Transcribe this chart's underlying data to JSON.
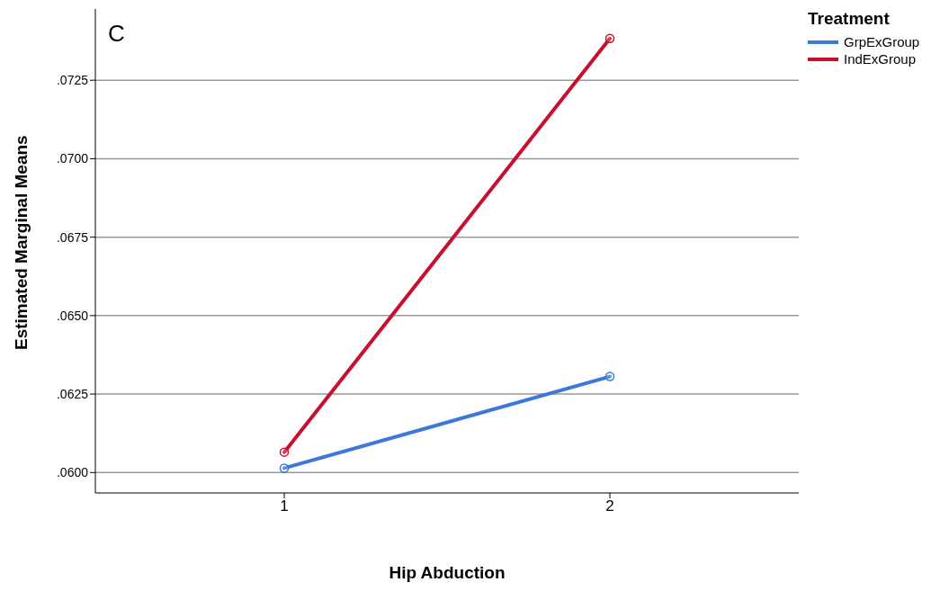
{
  "chart_data": {
    "type": "line",
    "xlabel": "Hip Abduction",
    "ylabel": "Estimated Marginal Means",
    "legend_title": "Treatment",
    "annotations": [
      "C"
    ],
    "categories": [
      "1",
      "2"
    ],
    "series": [
      {
        "name": "GrpExGroup",
        "color": "#3c78d8",
        "values": [
          0.06014,
          0.06306
        ]
      },
      {
        "name": "IndExGroup",
        "color": "#c8102e",
        "values": [
          0.06065,
          0.07383
        ]
      }
    ],
    "ylim": [
      0.05935,
      0.07477
    ],
    "yticks": [
      {
        "value": 0.06,
        "label": ".0600"
      },
      {
        "value": 0.0625,
        "label": ".0625"
      },
      {
        "value": 0.065,
        "label": ".0650"
      },
      {
        "value": 0.0675,
        "label": ".0675"
      },
      {
        "value": 0.07,
        "label": ".0700"
      },
      {
        "value": 0.0725,
        "label": ".0725"
      }
    ],
    "grid": "y",
    "legend": "top right",
    "marker": "circle",
    "line_style": "solid"
  }
}
